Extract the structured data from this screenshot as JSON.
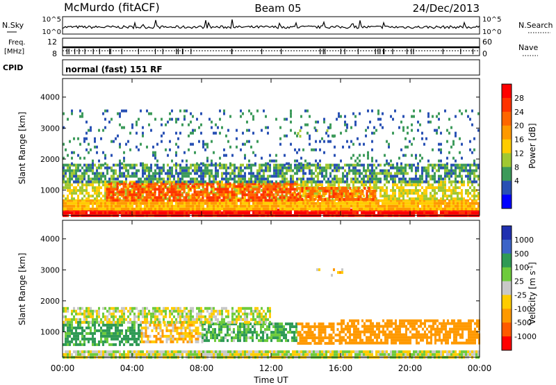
{
  "header": {
    "station": "McMurdo (fitACF)",
    "beam": "Beam 05",
    "date": "24/Dec/2013",
    "mode": "normal (fast) 151 RF"
  },
  "strip_labels": {
    "nsky": "N.Sky",
    "nsearch": "N.Search",
    "freq_line1": "Freq.",
    "freq_line2": "[MHz]",
    "nave": "Nave",
    "cpid": "CPID",
    "nsky_ticks": [
      "10^5",
      "10^0"
    ],
    "nsearch_ticks": [
      "10^5",
      "10^0"
    ],
    "freq_ticks": [
      "12",
      "8"
    ],
    "nave_ticks": [
      "60",
      "0"
    ]
  },
  "chart_data": [
    {
      "type": "heatmap",
      "panel": "power",
      "ylabel": "Slant Range [km]",
      "ylim": [
        180,
        4600
      ],
      "yticks": [
        1000,
        2000,
        3000,
        4000
      ],
      "xlim": [
        0,
        24
      ],
      "xticks": [
        "00:00",
        "04:00",
        "08:00",
        "12:00",
        "16:00",
        "20:00",
        "00:00"
      ],
      "colorbar_label": "Power [dB]",
      "colorbar_ticks": [
        "28",
        "24",
        "20",
        "16",
        "12",
        "8",
        "4"
      ],
      "colorbar_colors": [
        "#ff0000",
        "#ff3300",
        "#ff6600",
        "#ff9900",
        "#ffcc00",
        "#a0c832",
        "#3c9a5a",
        "#2850b4",
        "#0000ff"
      ],
      "regions": [
        {
          "t": [
            0,
            24
          ],
          "range": [
            200,
            400
          ],
          "level": 32
        },
        {
          "t": [
            0,
            24
          ],
          "range": [
            400,
            700
          ],
          "level": 18
        },
        {
          "t": [
            0,
            24
          ],
          "range": [
            700,
            1300
          ],
          "level": 14
        },
        {
          "t": [
            2.5,
            13.5
          ],
          "range": [
            650,
            1250
          ],
          "level": 26
        },
        {
          "t": [
            13.5,
            18
          ],
          "range": [
            700,
            1100
          ],
          "level": 24
        },
        {
          "t": [
            0,
            24
          ],
          "range": [
            1300,
            1850
          ],
          "level": 8
        },
        {
          "t": [
            13.5,
            16.5
          ],
          "range": [
            2750,
            3050
          ],
          "level": 10
        },
        {
          "t": [
            0,
            24
          ],
          "range": [
            1850,
            3600
          ],
          "level": 6
        }
      ]
    },
    {
      "type": "heatmap",
      "panel": "velocity",
      "ylabel": "Slant Range [km]",
      "ylim": [
        180,
        4600
      ],
      "yticks": [
        1000,
        2000,
        3000,
        4000
      ],
      "xlim": [
        0,
        24
      ],
      "xticks": [
        "00:00",
        "04:00",
        "08:00",
        "12:00",
        "16:00",
        "20:00",
        "00:00"
      ],
      "xlabel": "Time UT",
      "colorbar_label": "Velocity [m s",
      "colorbar_label_sup": "-1",
      "colorbar_label_end": "]",
      "colorbar_ticks": [
        "1000",
        "500",
        "100",
        "25",
        "-25",
        "-100",
        "-500",
        "-1000"
      ],
      "colorbar_colors": [
        "#2030b0",
        "#3c64c8",
        "#2f9a55",
        "#6ecb3c",
        "#c8c8c8",
        "#ffcc00",
        "#ff9900",
        "#ff5a00",
        "#ff0000"
      ],
      "regions": [
        {
          "t": [
            0,
            24
          ],
          "range": [
            200,
            400
          ],
          "velocity": 0
        },
        {
          "t": [
            0,
            4.5
          ],
          "range": [
            600,
            1350
          ],
          "velocity": 150
        },
        {
          "t": [
            4.5,
            8
          ],
          "range": [
            700,
            1350
          ],
          "velocity": -80
        },
        {
          "t": [
            8,
            13.5
          ],
          "range": [
            700,
            1300
          ],
          "velocity": 120
        },
        {
          "t": [
            13.5,
            16
          ],
          "range": [
            650,
            1300
          ],
          "velocity": -300
        },
        {
          "t": [
            16,
            24
          ],
          "range": [
            600,
            1400
          ],
          "velocity": -300
        },
        {
          "t": [
            0,
            12
          ],
          "range": [
            1300,
            1800
          ],
          "velocity": 0
        },
        {
          "t": [
            14,
            16.5
          ],
          "range": [
            2750,
            3050
          ],
          "velocity": -80
        }
      ]
    }
  ]
}
